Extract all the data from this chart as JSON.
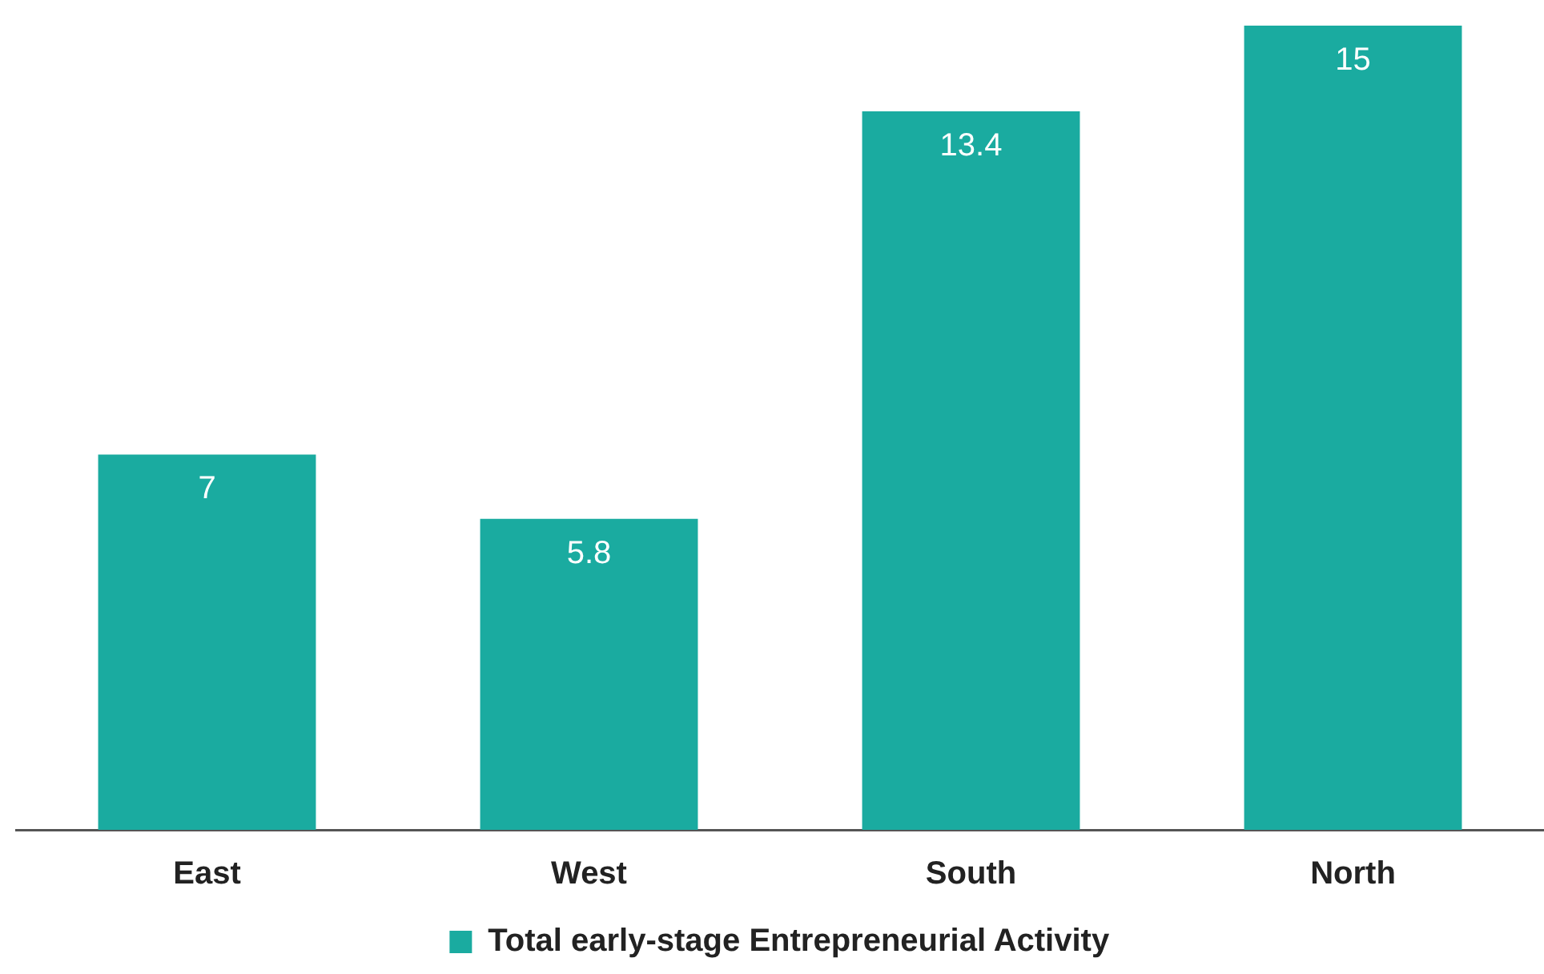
{
  "chart_data": {
    "type": "bar",
    "categories": [
      "East",
      "West",
      "South",
      "North"
    ],
    "series": [
      {
        "name": "Total early-stage Entrepreneurial Activity",
        "color": "#1aaba0",
        "values": [
          7,
          5.8,
          13.4,
          15
        ]
      }
    ],
    "ylim": [
      0,
      15
    ],
    "data_labels": true,
    "legend": "bottom",
    "grid": false,
    "tick_labels": "x"
  }
}
